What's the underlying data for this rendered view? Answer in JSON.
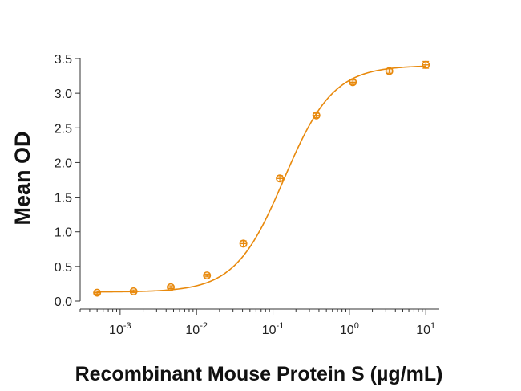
{
  "chart_data": {
    "type": "scatter",
    "title": "",
    "xlabel": "Recombinant Mouse Protein S (µg/mL)",
    "ylabel": "Mean OD",
    "x_scale": "log",
    "xlim": [
      0.0003,
      15
    ],
    "ylim": [
      0,
      3.5
    ],
    "x_ticks": [
      {
        "value": 0.001,
        "base": "10",
        "exp": "-3"
      },
      {
        "value": 0.01,
        "base": "10",
        "exp": "-2"
      },
      {
        "value": 0.1,
        "base": "10",
        "exp": "-1"
      },
      {
        "value": 1,
        "base": "10",
        "exp": "0"
      },
      {
        "value": 10,
        "base": "10",
        "exp": "1"
      }
    ],
    "y_ticks": [
      "0.0",
      "0.5",
      "1.0",
      "1.5",
      "2.0",
      "2.5",
      "3.0",
      "3.5"
    ],
    "grid": false,
    "color": "#e8890c",
    "series": [
      {
        "x": [
          0.0005,
          0.0015,
          0.0046,
          0.0137,
          0.041,
          0.123,
          0.37,
          1.11,
          3.33,
          10
        ],
        "y": [
          0.12,
          0.14,
          0.2,
          0.37,
          0.83,
          1.77,
          2.68,
          3.16,
          3.32,
          3.41
        ],
        "error": [
          0.02,
          0.02,
          0.02,
          0.02,
          0.04,
          0.04,
          0.03,
          0.03,
          0.03,
          0.05
        ]
      }
    ],
    "fit": {
      "bottom": 0.13,
      "top": 3.4,
      "ec50": 0.14,
      "hill": 1.35
    }
  }
}
